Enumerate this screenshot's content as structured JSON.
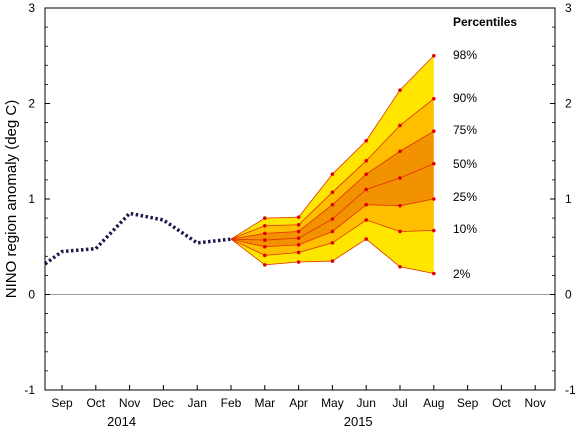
{
  "chart_data": {
    "type": "area",
    "ylabel": "NINO region anomaly (deg C)",
    "ylim": [
      -1,
      3
    ],
    "yticks": [
      "-1",
      "0",
      "1",
      "2",
      "3"
    ],
    "months": [
      "Sep",
      "Oct",
      "Nov",
      "Dec",
      "Jan",
      "Feb",
      "Mar",
      "Apr",
      "May",
      "Jun",
      "Jul",
      "Aug",
      "Sep",
      "Oct",
      "Nov"
    ],
    "years": [
      {
        "label": "2014",
        "month_index": 2
      },
      {
        "label": "2015",
        "month_index": 9
      }
    ],
    "zero_line": true,
    "observed": {
      "x": [
        -0.5,
        0,
        1,
        2,
        3,
        4,
        5
      ],
      "y": [
        0.32,
        0.45,
        0.48,
        0.85,
        0.78,
        0.54,
        0.58
      ]
    },
    "forecast_x": [
      5,
      6,
      7,
      8,
      9,
      10,
      11
    ],
    "percentiles_title": "Percentiles",
    "percentiles": [
      {
        "label": "98%",
        "values": [
          0.58,
          0.8,
          0.81,
          1.26,
          1.61,
          2.14,
          2.5
        ]
      },
      {
        "label": "90%",
        "values": [
          0.58,
          0.72,
          0.73,
          1.07,
          1.4,
          1.77,
          2.05
        ]
      },
      {
        "label": "75%",
        "values": [
          0.58,
          0.64,
          0.66,
          0.94,
          1.26,
          1.5,
          1.71
        ]
      },
      {
        "label": "50%",
        "values": [
          0.58,
          0.57,
          0.59,
          0.79,
          1.1,
          1.22,
          1.37
        ]
      },
      {
        "label": "25%",
        "values": [
          0.58,
          0.5,
          0.52,
          0.66,
          0.94,
          0.93,
          1.0
        ]
      },
      {
        "label": "10%",
        "values": [
          0.58,
          0.41,
          0.44,
          0.54,
          0.78,
          0.66,
          0.67
        ]
      },
      {
        "label": "2%",
        "values": [
          0.58,
          0.31,
          0.34,
          0.35,
          0.58,
          0.29,
          0.22
        ]
      }
    ],
    "colors": {
      "band_outer": "#ffe600",
      "band_middle": "#ffbe00",
      "band_inner": "#f39200",
      "percentile_line": "#e03000",
      "marker": "#e00000",
      "observed": "#1a1a4d",
      "zero_line": "#999999"
    }
  }
}
